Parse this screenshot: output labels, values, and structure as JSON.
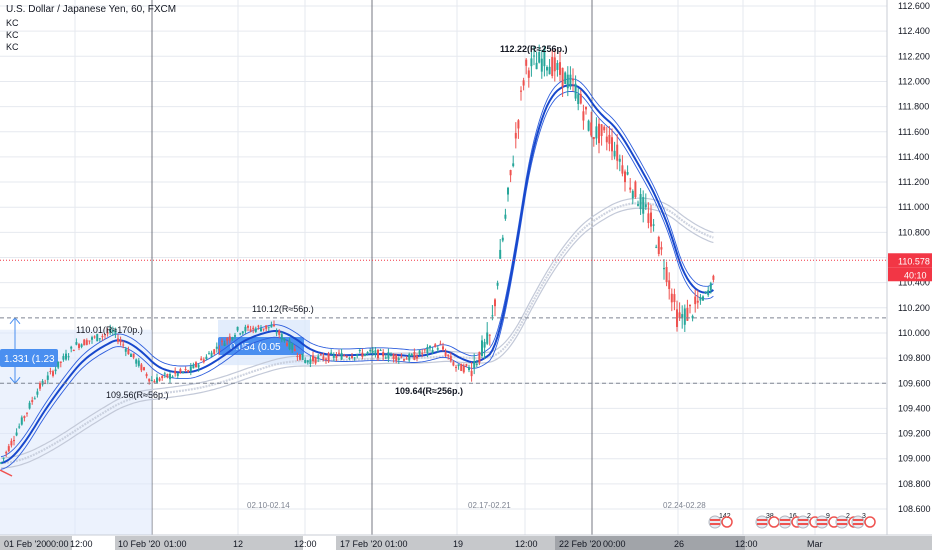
{
  "header": {
    "title": "U.S. Dollar / Japanese Yen, 60, FXCM",
    "indicators": [
      "KC",
      "KC",
      "KC"
    ]
  },
  "colors": {
    "up": "#26a69a",
    "down": "#ef5350",
    "ema_fast": "#1848cc",
    "channel": "#2f5fdd",
    "slow_ma": "#c3c9d8",
    "last_price_bg": "#f23645",
    "grid": "#e6e9ef",
    "dashed": "#7f8592",
    "session": "#5d606b",
    "measure_fill": "#dce8fb",
    "measure_label": "#4a8ff0"
  },
  "price_axis": {
    "labels": [
      "112.600",
      "112.400",
      "112.200",
      "112.000",
      "111.800",
      "111.600",
      "111.400",
      "111.200",
      "111.000",
      "110.800",
      "110.600",
      "110.400",
      "110.200",
      "110.000",
      "109.800",
      "109.600",
      "109.400",
      "109.200",
      "109.000",
      "108.800",
      "108.600"
    ],
    "last_price": "110.578",
    "countdown": "40:10"
  },
  "time_axis": {
    "labels": [
      "01 Feb '20",
      "00:00",
      "12:00",
      "10 Feb '20",
      "01:00",
      "12",
      "12:00",
      "17 Feb '20",
      "01:00",
      "19",
      "12:00",
      "22 Feb '20",
      "00:00",
      "26",
      "12:00",
      "Mar"
    ]
  },
  "week_labels": [
    "02.10-02.14",
    "02.17-02.21",
    "02.24-02.28"
  ],
  "annotations": {
    "high_1": "110.01(R≈170p.)",
    "low_1": "109.56(R≈56p.)",
    "high_2": "110.12(R≈56p.)",
    "low_2": "109.64(R≈256p.)",
    "high_3": "112.22(R≈256p.)",
    "measure_left": "1.331 (1.23",
    "measure_right": "0.054 (0.05"
  },
  "events": {
    "e1": "142",
    "e2": "38",
    "e3": "16",
    "e4": "2",
    "e5": "9",
    "e6": "2",
    "e7": "3"
  },
  "chart_data": {
    "type": "candlestick",
    "title": "U.S. Dollar / Japanese Yen, 60, FXCM",
    "timeframe": "60",
    "source": "FXCM",
    "ylim": [
      108.55,
      112.68
    ],
    "x_range": [
      "2020-02-06",
      "2020-03-02"
    ],
    "grid": true,
    "last_price": 110.578,
    "horizontal_levels": [
      110.12,
      109.6
    ],
    "series": [
      {
        "name": "price_path",
        "x": [
          "2020-02-07 00:00",
          "2020-02-07 12:00",
          "2020-02-10 00:00",
          "2020-02-10 12:00",
          "2020-02-11 00:00",
          "2020-02-11 12:00",
          "2020-02-12 00:00",
          "2020-02-12 12:00",
          "2020-02-13 00:00",
          "2020-02-13 12:00",
          "2020-02-14 00:00",
          "2020-02-14 12:00",
          "2020-02-17 00:00",
          "2020-02-17 12:00",
          "2020-02-18 00:00",
          "2020-02-18 12:00",
          "2020-02-19 00:00",
          "2020-02-19 12:00",
          "2020-02-20 00:00",
          "2020-02-20 12:00",
          "2020-02-21 00:00",
          "2020-02-21 12:00",
          "2020-02-24 00:00",
          "2020-02-24 12:00",
          "2020-02-25 00:00",
          "2020-02-25 12:00",
          "2020-02-26 00:00",
          "2020-02-26 12:00",
          "2020-02-27 00:00"
        ],
        "values": [
          108.95,
          109.55,
          109.9,
          110.01,
          109.62,
          109.7,
          109.82,
          109.76,
          109.85,
          110.0,
          110.12,
          109.9,
          109.78,
          109.8,
          109.78,
          109.8,
          109.9,
          109.7,
          109.72,
          110.1,
          111.3,
          112.1,
          112.22,
          111.6,
          111.45,
          110.9,
          110.35,
          110.0,
          110.58
        ]
      }
    ]
  }
}
